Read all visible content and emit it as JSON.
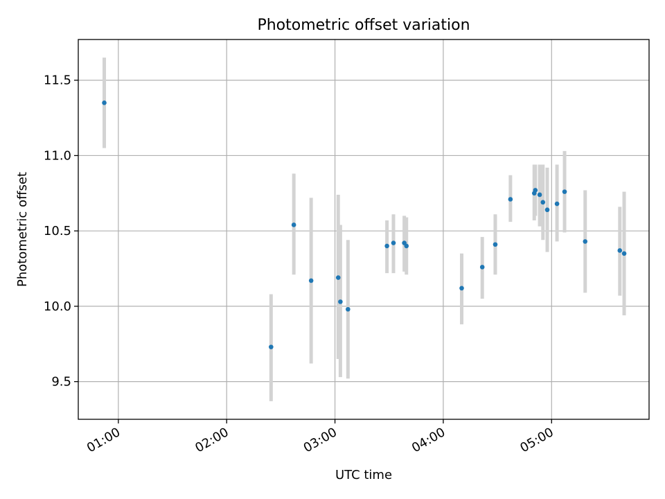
{
  "chart_data": {
    "type": "scatter",
    "title": "Photometric offset variation",
    "xlabel": "UTC time",
    "ylabel": "Photometric offset",
    "grid": true,
    "xlim_hours": [
      0.63,
      5.9
    ],
    "ylim": [
      9.25,
      11.77
    ],
    "x_ticks": [
      {
        "label": "01:00",
        "value": 1.0
      },
      {
        "label": "02:00",
        "value": 2.0
      },
      {
        "label": "03:00",
        "value": 3.0
      },
      {
        "label": "04:00",
        "value": 4.0
      },
      {
        "label": "05:00",
        "value": 5.0
      }
    ],
    "y_ticks": [
      {
        "label": "9.5",
        "value": 9.5
      },
      {
        "label": "10.0",
        "value": 10.0
      },
      {
        "label": "10.5",
        "value": 10.5
      },
      {
        "label": "11.0",
        "value": 11.0
      },
      {
        "label": "11.5",
        "value": 11.5
      }
    ],
    "point_color": "#1f77b4",
    "errorbar_color": "#d3d3d3",
    "points": [
      {
        "x": 0.87,
        "y": 11.35,
        "ylo": 11.05,
        "yhi": 11.65
      },
      {
        "x": 2.41,
        "y": 9.73,
        "ylo": 9.37,
        "yhi": 10.08
      },
      {
        "x": 2.62,
        "y": 10.54,
        "ylo": 10.21,
        "yhi": 10.88
      },
      {
        "x": 2.78,
        "y": 10.17,
        "ylo": 9.62,
        "yhi": 10.72
      },
      {
        "x": 3.03,
        "y": 10.19,
        "ylo": 9.65,
        "yhi": 10.74
      },
      {
        "x": 3.05,
        "y": 10.03,
        "ylo": 9.53,
        "yhi": 10.54
      },
      {
        "x": 3.12,
        "y": 9.98,
        "ylo": 9.52,
        "yhi": 10.44
      },
      {
        "x": 3.48,
        "y": 10.4,
        "ylo": 10.22,
        "yhi": 10.57
      },
      {
        "x": 3.54,
        "y": 10.42,
        "ylo": 10.22,
        "yhi": 10.61
      },
      {
        "x": 3.64,
        "y": 10.42,
        "ylo": 10.23,
        "yhi": 10.6
      },
      {
        "x": 3.66,
        "y": 10.4,
        "ylo": 10.21,
        "yhi": 10.59
      },
      {
        "x": 4.17,
        "y": 10.12,
        "ylo": 9.88,
        "yhi": 10.35
      },
      {
        "x": 4.36,
        "y": 10.26,
        "ylo": 10.05,
        "yhi": 10.46
      },
      {
        "x": 4.48,
        "y": 10.41,
        "ylo": 10.21,
        "yhi": 10.61
      },
      {
        "x": 4.62,
        "y": 10.71,
        "ylo": 10.56,
        "yhi": 10.87
      },
      {
        "x": 4.84,
        "y": 10.75,
        "ylo": 10.57,
        "yhi": 10.94
      },
      {
        "x": 4.85,
        "y": 10.77,
        "ylo": 10.6,
        "yhi": 10.94
      },
      {
        "x": 4.89,
        "y": 10.74,
        "ylo": 10.53,
        "yhi": 10.94
      },
      {
        "x": 4.92,
        "y": 10.69,
        "ylo": 10.44,
        "yhi": 10.94
      },
      {
        "x": 4.96,
        "y": 10.64,
        "ylo": 10.36,
        "yhi": 10.92
      },
      {
        "x": 5.05,
        "y": 10.68,
        "ylo": 10.43,
        "yhi": 10.94
      },
      {
        "x": 5.12,
        "y": 10.76,
        "ylo": 10.49,
        "yhi": 11.03
      },
      {
        "x": 5.31,
        "y": 10.43,
        "ylo": 10.09,
        "yhi": 10.77
      },
      {
        "x": 5.63,
        "y": 10.37,
        "ylo": 10.07,
        "yhi": 10.66
      },
      {
        "x": 5.67,
        "y": 10.35,
        "ylo": 9.94,
        "yhi": 10.76
      }
    ]
  }
}
